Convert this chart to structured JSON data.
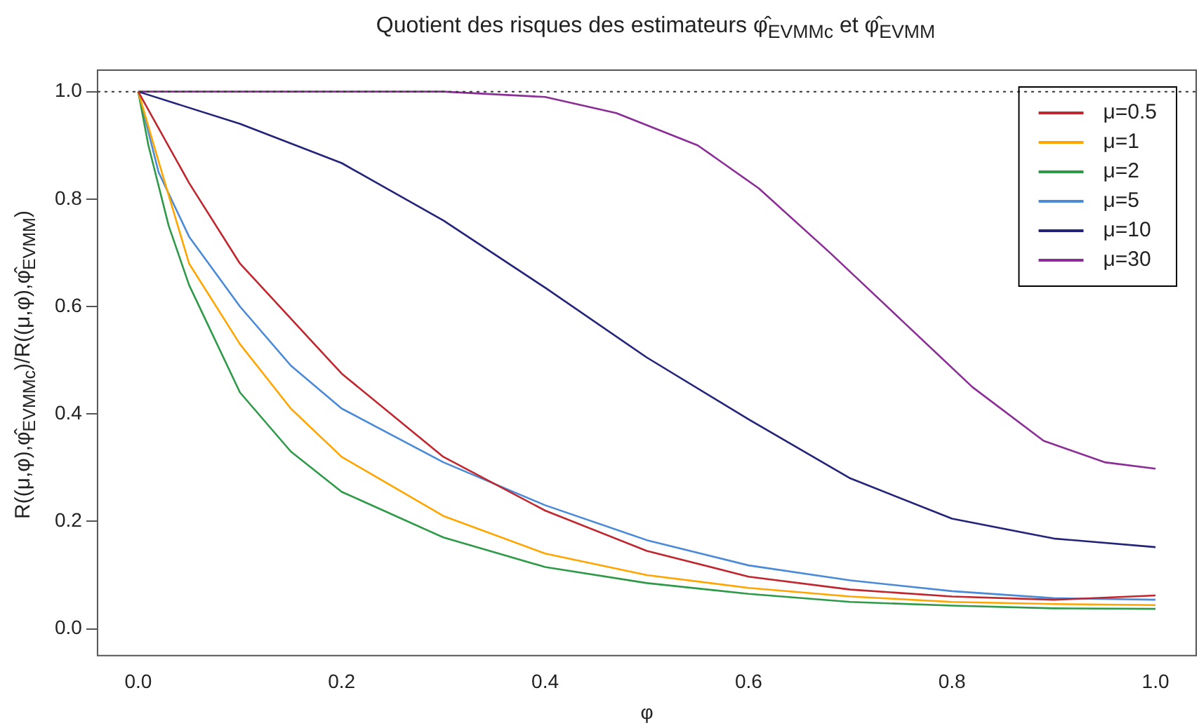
{
  "chart_data": {
    "type": "line",
    "title": "Quotient des risques des estimateurs φ̂$_{EVMMc}$ et φ̂$_{EVMM}$",
    "xlabel": "φ",
    "ylabel": "R((μ,φ),φ̂$_{EVMMc}$)/R((μ,φ),φ̂$_{EVMM}$)",
    "xlim": [
      -0.04,
      1.04
    ],
    "ylim": [
      -0.05,
      1.04
    ],
    "xticks": [
      {
        "value": 0,
        "label": "0.0"
      },
      {
        "value": 0.2,
        "label": "0.2"
      },
      {
        "value": 0.4,
        "label": "0.4"
      },
      {
        "value": 0.6,
        "label": "0.6"
      },
      {
        "value": 0.8,
        "label": "0.8"
      },
      {
        "value": 1,
        "label": "1.0"
      }
    ],
    "yticks": [
      {
        "value": 0,
        "label": "0.0"
      },
      {
        "value": 0.2,
        "label": "0.2"
      },
      {
        "value": 0.4,
        "label": "0.4"
      },
      {
        "value": 0.6,
        "label": "0.6"
      },
      {
        "value": 0.8,
        "label": "0.8"
      },
      {
        "value": 1,
        "label": "1.0"
      }
    ],
    "grid": false,
    "legend": "top right",
    "marker": "none",
    "line_style": "solid",
    "ref_lines": [
      {
        "axis": "y",
        "value": 1,
        "line_style": "dotted",
        "color": "#333333"
      }
    ],
    "series": [
      {
        "name": "μ=0.5",
        "color": "#c0262d",
        "x": [
          0,
          0.05,
          0.1,
          0.2,
          0.3,
          0.4,
          0.5,
          0.6,
          0.7,
          0.8,
          0.9,
          1
        ],
        "values": [
          1,
          0.83,
          0.68,
          0.475,
          0.32,
          0.22,
          0.145,
          0.097,
          0.073,
          0.06,
          0.054,
          0.062
        ]
      },
      {
        "name": "μ=1",
        "color": "#ffa500",
        "x": [
          0,
          0.02,
          0.05,
          0.1,
          0.15,
          0.2,
          0.3,
          0.4,
          0.5,
          0.6,
          0.7,
          0.8,
          0.9,
          1
        ],
        "values": [
          1,
          0.87,
          0.68,
          0.53,
          0.41,
          0.32,
          0.21,
          0.14,
          0.1,
          0.076,
          0.06,
          0.05,
          0.046,
          0.044
        ]
      },
      {
        "name": "μ=2",
        "color": "#2e9a48",
        "x": [
          0,
          0.01,
          0.03,
          0.05,
          0.1,
          0.15,
          0.2,
          0.3,
          0.4,
          0.5,
          0.6,
          0.7,
          0.8,
          0.9,
          1
        ],
        "values": [
          1,
          0.9,
          0.75,
          0.64,
          0.44,
          0.33,
          0.255,
          0.17,
          0.115,
          0.085,
          0.065,
          0.05,
          0.043,
          0.038,
          0.037
        ]
      },
      {
        "name": "μ=5",
        "color": "#4a8ad6",
        "x": [
          0,
          0.02,
          0.05,
          0.1,
          0.15,
          0.2,
          0.3,
          0.4,
          0.5,
          0.6,
          0.7,
          0.8,
          0.9,
          1
        ],
        "values": [
          1,
          0.85,
          0.73,
          0.6,
          0.49,
          0.41,
          0.31,
          0.23,
          0.165,
          0.118,
          0.09,
          0.07,
          0.057,
          0.054
        ]
      },
      {
        "name": "μ=10",
        "color": "#23237a",
        "x": [
          0,
          0.1,
          0.2,
          0.3,
          0.4,
          0.5,
          0.6,
          0.7,
          0.8,
          0.9,
          1
        ],
        "values": [
          1,
          0.94,
          0.867,
          0.76,
          0.635,
          0.505,
          0.39,
          0.28,
          0.205,
          0.168,
          0.152
        ]
      },
      {
        "name": "μ=30",
        "color": "#8b2d96",
        "x": [
          0,
          0.3,
          0.4,
          0.47,
          0.55,
          0.61,
          0.68,
          0.75,
          0.82,
          0.89,
          0.95,
          1
        ],
        "values": [
          1,
          1,
          0.99,
          0.96,
          0.9,
          0.82,
          0.7,
          0.575,
          0.45,
          0.35,
          0.31,
          0.298
        ]
      }
    ]
  }
}
